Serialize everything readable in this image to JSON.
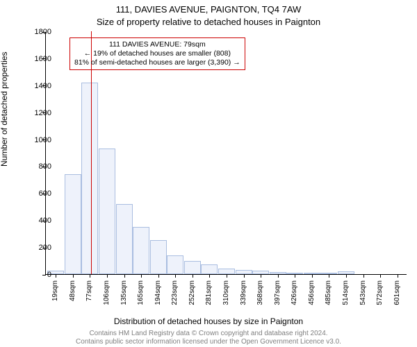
{
  "title_main": "111, DAVIES AVENUE, PAIGNTON, TQ4 7AW",
  "title_sub": "Size of property relative to detached houses in Paignton",
  "ylabel": "Number of detached properties",
  "xlabel": "Distribution of detached houses by size in Paignton",
  "footer_line1": "Contains HM Land Registry data © Crown copyright and database right 2024.",
  "footer_line2": "Contains public sector information licensed under the Open Government Licence v3.0.",
  "chart": {
    "type": "histogram",
    "ylim": [
      0,
      1800
    ],
    "ytick_step": 200,
    "background_color": "#ffffff",
    "axis_color": "#000000",
    "bar_fill": "#eef2fb",
    "bar_stroke": "#a9bde0",
    "reference_line": {
      "x_value": 79,
      "color": "#cc0000"
    },
    "bin_width_sqm": 29,
    "x_categories": [
      "19sqm",
      "48sqm",
      "77sqm",
      "106sqm",
      "135sqm",
      "165sqm",
      "194sqm",
      "223sqm",
      "252sqm",
      "281sqm",
      "310sqm",
      "339sqm",
      "368sqm",
      "397sqm",
      "426sqm",
      "456sqm",
      "485sqm",
      "514sqm",
      "543sqm",
      "572sqm",
      "601sqm"
    ],
    "values": [
      25,
      740,
      1420,
      930,
      520,
      350,
      250,
      140,
      100,
      70,
      40,
      30,
      25,
      15,
      10,
      10,
      8,
      20,
      0,
      0,
      0
    ],
    "annotation": {
      "border_color": "#cc0000",
      "lines": [
        "111 DAVIES AVENUE: 79sqm",
        "← 19% of detached houses are smaller (808)",
        "81% of semi-detached houses are larger (3,390) →"
      ]
    }
  }
}
